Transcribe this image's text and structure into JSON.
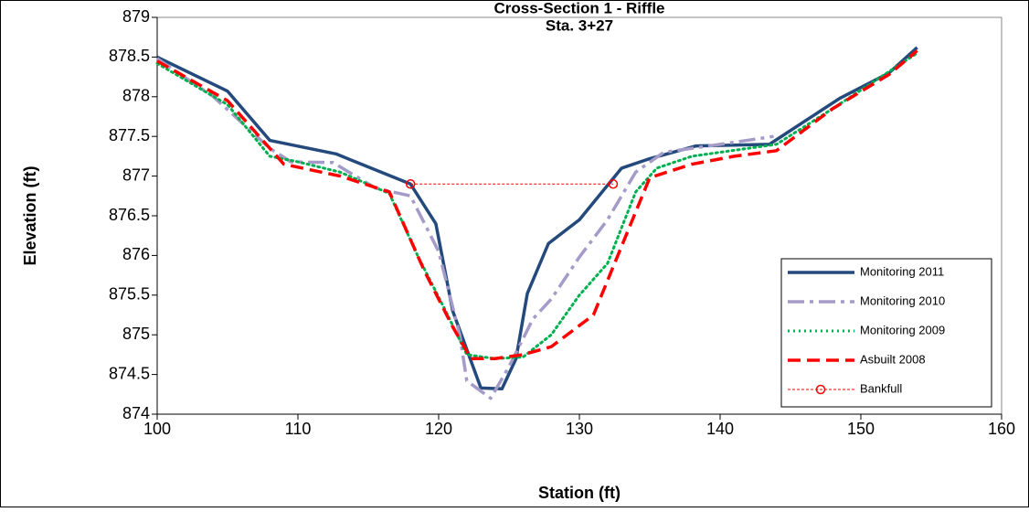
{
  "chart_data": {
    "type": "line",
    "title": "Cross-Section 1 - Riffle",
    "subtitle": "Sta. 3+27",
    "x_label": "Station (ft)",
    "y_label": "Elevation (ft)",
    "xlim": [
      100,
      160
    ],
    "xticks": [
      100,
      110,
      120,
      130,
      140,
      150,
      160
    ],
    "ylim": [
      874,
      879
    ],
    "yticks": [
      874,
      874.5,
      875,
      875.5,
      876,
      876.5,
      877,
      877.5,
      878,
      878.5,
      879
    ],
    "grid": false,
    "legend": "right",
    "series": [
      {
        "name": "Monitoring 2011",
        "color": "#24497c",
        "dash": "solid",
        "width": 3.5,
        "x": [
          100,
          105,
          108,
          112.7,
          118,
          119.8,
          121,
          123,
          124.5,
          125.5,
          126.3,
          127.8,
          130,
          133,
          135,
          138.3,
          143.5,
          148.5,
          152,
          154
        ],
        "values": [
          878.5,
          878.07,
          877.45,
          877.28,
          876.9,
          876.4,
          875.3,
          874.33,
          874.32,
          874.7,
          875.52,
          876.15,
          876.45,
          877.1,
          877.22,
          877.38,
          877.4,
          877.98,
          878.3,
          878.62
        ]
      },
      {
        "name": "Monitoring 2010",
        "color": "#a59bc8",
        "dash": "dashdot",
        "width": 3.5,
        "x": [
          100,
          104,
          108,
          109.5,
          112.5,
          115.5,
          118,
          120,
          121.5,
          122,
          123.7,
          125,
          126.7,
          128,
          130,
          132,
          134,
          136,
          140,
          143.8
        ],
        "values": [
          878.48,
          878.0,
          877.35,
          877.18,
          877.17,
          876.85,
          876.75,
          876.05,
          875.0,
          874.42,
          874.2,
          874.6,
          875.2,
          875.45,
          875.98,
          876.45,
          877.05,
          877.3,
          877.4,
          877.5
        ]
      },
      {
        "name": "Monitoring 2009",
        "color": "#00b050",
        "dash": "dot",
        "width": 3,
        "x": [
          100,
          105,
          108,
          110,
          113,
          116.5,
          118.5,
          120.5,
          122,
          124,
          126,
          128,
          130,
          132,
          134,
          135.5,
          138,
          144,
          148,
          154
        ],
        "values": [
          878.42,
          877.9,
          877.25,
          877.18,
          877.05,
          876.78,
          876.0,
          875.3,
          874.75,
          874.7,
          874.72,
          875.0,
          875.5,
          875.9,
          876.8,
          877.1,
          877.25,
          877.4,
          877.85,
          878.55
        ]
      },
      {
        "name": "Asbuilt 2008",
        "color": "#ff0000",
        "dash": "dash",
        "width": 3.5,
        "x": [
          100,
          105,
          109,
          113,
          116.5,
          119,
          121,
          122.3,
          124,
          126,
          128,
          131,
          132.5,
          135,
          138,
          141,
          144,
          148,
          152,
          154
        ],
        "values": [
          878.45,
          877.95,
          877.15,
          877.0,
          876.8,
          875.8,
          875.1,
          874.7,
          874.7,
          874.75,
          874.85,
          875.25,
          875.9,
          876.98,
          877.15,
          877.25,
          877.32,
          877.85,
          878.28,
          878.58
        ]
      },
      {
        "name": "Bankfull",
        "color": "#ff0000",
        "dash": "dot-thin",
        "width": 1,
        "marker": "circle",
        "x": [
          118,
          132.4
        ],
        "values": [
          876.9,
          876.9
        ]
      }
    ]
  }
}
